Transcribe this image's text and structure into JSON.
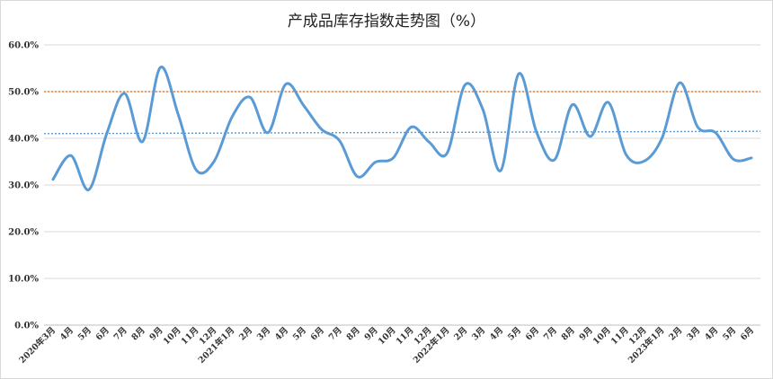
{
  "chart_data": {
    "type": "line",
    "title": "产成品库存指数走势图（%）",
    "xlabel": "",
    "ylabel": "",
    "ylim": [
      0,
      60
    ],
    "yticks": [
      "0.0%",
      "10.0%",
      "20.0%",
      "30.0%",
      "40.0%",
      "50.0%",
      "60.0%"
    ],
    "grid": true,
    "categories": [
      "2020年3月",
      "4月",
      "5月",
      "6月",
      "7月",
      "8月",
      "9月",
      "10月",
      "11月",
      "12月",
      "2021年1月",
      "2月",
      "3月",
      "4月",
      "5月",
      "6月",
      "7月",
      "8月",
      "9月",
      "10月",
      "11月",
      "12月",
      "2022年1月",
      "2月",
      "3月",
      "4月",
      "5月",
      "6月",
      "7月",
      "8月",
      "9月",
      "10月",
      "11月",
      "12月",
      "2023年1月",
      "2月",
      "3月",
      "4月",
      "5月",
      "6月"
    ],
    "series": [
      {
        "values": [
          31.2,
          36.3,
          29.0,
          41.0,
          49.6,
          39.3,
          55.2,
          45.0,
          33.2,
          35.1,
          44.6,
          48.8,
          41.2,
          51.6,
          47.0,
          41.9,
          39.5,
          31.8,
          34.9,
          35.8,
          42.4,
          39.2,
          36.8,
          51.4,
          46.2,
          33.1,
          53.8,
          41.3,
          35.4,
          47.2,
          40.4,
          47.7,
          36.5,
          35.1,
          40.0,
          51.9,
          42.4,
          41.2,
          35.5,
          35.8
        ],
        "color": "#5b9bd5"
      }
    ],
    "reference_lines": [
      {
        "value": 50.0,
        "color": "#ed7d31",
        "style": "dotted"
      },
      {
        "value": [
          41.0,
          41.5
        ],
        "color": "#5b9bd5",
        "style": "dotted"
      }
    ]
  }
}
